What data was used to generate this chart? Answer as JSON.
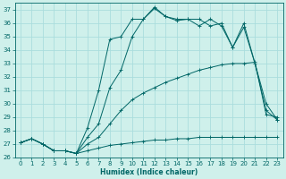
{
  "xlabel": "Humidex (Indice chaleur)",
  "bg_color": "#cff0eb",
  "grid_color": "#aadddd",
  "line_color": "#006666",
  "xlim": [
    -0.5,
    23.5
  ],
  "ylim": [
    26,
    37.5
  ],
  "xticks": [
    0,
    1,
    2,
    3,
    4,
    5,
    6,
    7,
    8,
    9,
    10,
    11,
    12,
    13,
    14,
    15,
    16,
    17,
    18,
    19,
    20,
    21,
    22,
    23
  ],
  "yticks": [
    26,
    27,
    28,
    29,
    30,
    31,
    32,
    33,
    34,
    35,
    36,
    37
  ],
  "line1_x": [
    0,
    1,
    2,
    3,
    4,
    5,
    6,
    7,
    8,
    9,
    10,
    11,
    12,
    13,
    14,
    15,
    16,
    17,
    18,
    19,
    20,
    21,
    22,
    23
  ],
  "line1_y": [
    27.1,
    27.4,
    27.0,
    26.5,
    26.5,
    26.3,
    26.5,
    26.7,
    26.9,
    27.0,
    27.1,
    27.2,
    27.3,
    27.3,
    27.4,
    27.4,
    27.5,
    27.5,
    27.5,
    27.5,
    27.5,
    27.5,
    27.5,
    27.5
  ],
  "line2_x": [
    0,
    1,
    2,
    3,
    4,
    5,
    6,
    7,
    8,
    9,
    10,
    11,
    12,
    13,
    14,
    15,
    16,
    17,
    18,
    19,
    20,
    21,
    22,
    23
  ],
  "line2_y": [
    27.1,
    27.4,
    27.0,
    26.5,
    26.5,
    26.3,
    27.0,
    27.5,
    28.5,
    29.5,
    30.3,
    30.8,
    31.2,
    31.6,
    31.9,
    32.2,
    32.5,
    32.7,
    32.9,
    33.0,
    33.0,
    33.1,
    29.2,
    29.0
  ],
  "line3_x": [
    0,
    1,
    2,
    3,
    4,
    5,
    6,
    7,
    8,
    9,
    10,
    11,
    12,
    13,
    14,
    15,
    16,
    17,
    18,
    19,
    20,
    21,
    22,
    23
  ],
  "line3_y": [
    27.1,
    27.4,
    27.0,
    26.5,
    26.5,
    26.3,
    27.5,
    28.5,
    31.2,
    32.5,
    35.0,
    36.3,
    37.2,
    36.5,
    36.2,
    36.3,
    36.3,
    35.8,
    36.0,
    34.2,
    35.7,
    33.0,
    29.5,
    28.8
  ],
  "line4_x": [
    0,
    1,
    2,
    3,
    4,
    5,
    6,
    7,
    8,
    9,
    10,
    11,
    12,
    13,
    14,
    15,
    16,
    17,
    18,
    19,
    20,
    22,
    23
  ],
  "line4_y": [
    27.1,
    27.4,
    27.0,
    26.5,
    26.5,
    26.3,
    28.2,
    31.0,
    34.8,
    35.0,
    36.3,
    36.3,
    37.1,
    36.5,
    36.3,
    36.3,
    35.8,
    36.3,
    35.8,
    34.2,
    36.0,
    30.0,
    28.8
  ],
  "marker": "+"
}
